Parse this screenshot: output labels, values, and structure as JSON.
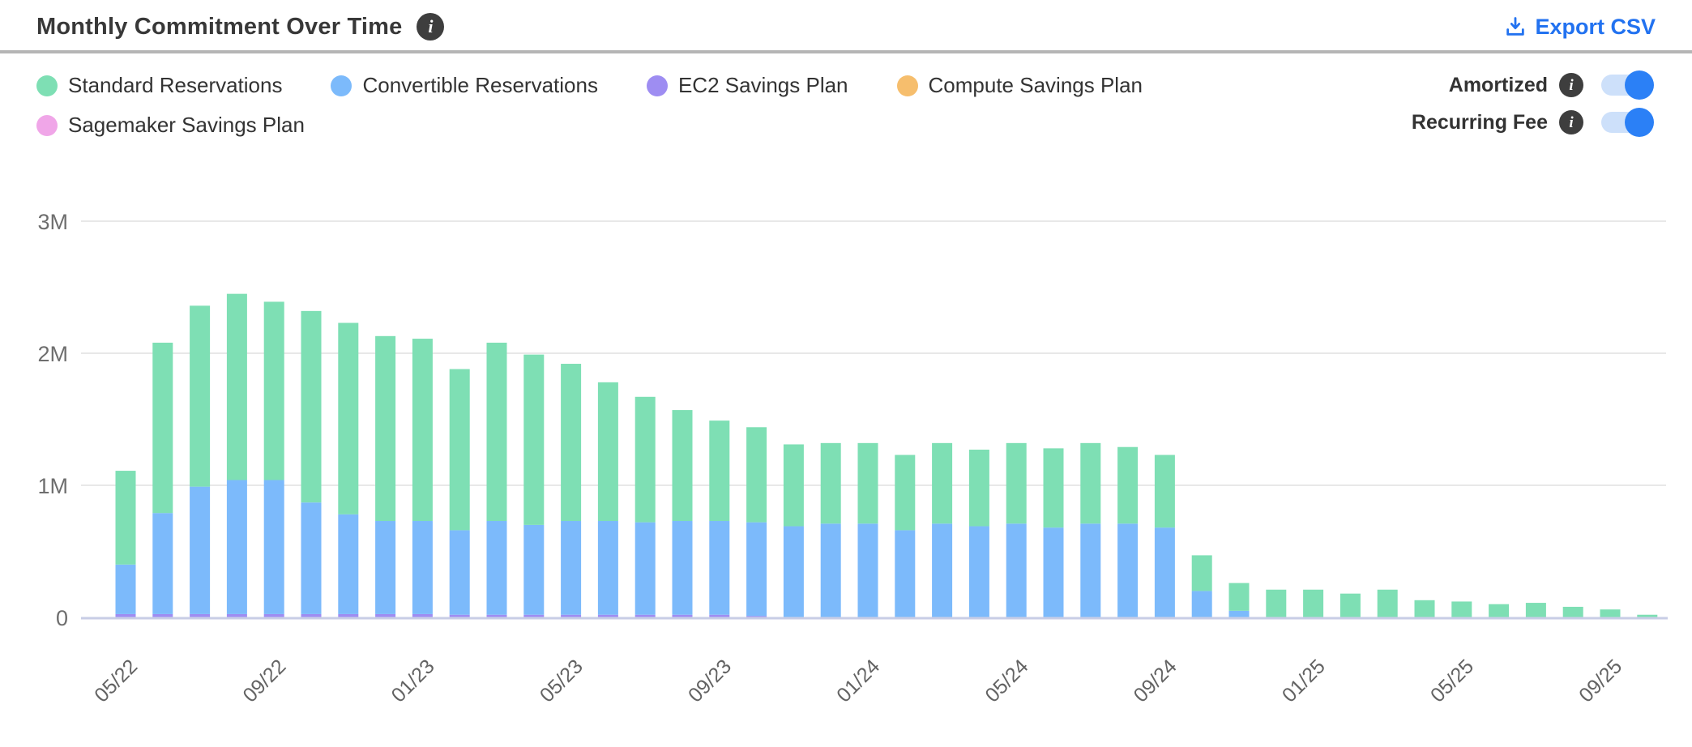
{
  "header": {
    "title": "Monthly Commitment Over Time",
    "title_info_icon": "info-icon",
    "export_label": "Export CSV",
    "export_color": "#2272f0"
  },
  "toggles": [
    {
      "label": "Amortized",
      "state": "on"
    },
    {
      "label": "Recurring Fee",
      "state": "on"
    }
  ],
  "colors": {
    "standard": "#7edfb4",
    "convertible": "#7cbafb",
    "ec2_sp": "#9e8df2",
    "compute_sp": "#f6be6d",
    "sagemaker_sp": "#f0a6e8",
    "toggle_on": "#2b80f6",
    "toggle_track": "#cde0fa",
    "gridline": "#e8e8e8",
    "baseline": "#c8cde6",
    "axis_text": "#6e6e6e"
  },
  "chart_data": {
    "type": "bar",
    "stacked": true,
    "title": "Monthly Commitment Over Time",
    "ylabel": "",
    "xlabel": "",
    "y_ticks": [
      "0",
      "1M",
      "2M",
      "3M"
    ],
    "ylim_millions": [
      0,
      3
    ],
    "grid": "horizontal",
    "legend_position": "top-left",
    "x_tick_every": 4,
    "values_unit": "millions",
    "x": [
      "05/22",
      "06/22",
      "07/22",
      "08/22",
      "09/22",
      "10/22",
      "11/22",
      "12/22",
      "01/23",
      "02/23",
      "03/23",
      "04/23",
      "05/23",
      "06/23",
      "07/23",
      "08/23",
      "09/23",
      "10/23",
      "11/23",
      "12/23",
      "01/24",
      "02/24",
      "03/24",
      "04/24",
      "05/24",
      "06/24",
      "07/24",
      "08/24",
      "09/24",
      "10/24",
      "11/24",
      "12/24",
      "01/25",
      "02/25",
      "03/25",
      "04/25",
      "05/25",
      "06/25",
      "07/25",
      "08/25",
      "09/25",
      "10/25"
    ],
    "series": [
      {
        "name": "Standard Reservations",
        "color": "#7edfb4",
        "values": [
          0.71,
          1.29,
          1.37,
          1.41,
          1.35,
          1.45,
          1.45,
          1.4,
          1.38,
          1.22,
          1.35,
          1.29,
          1.19,
          1.05,
          0.95,
          0.84,
          0.76,
          0.72,
          0.62,
          0.61,
          0.61,
          0.57,
          0.61,
          0.58,
          0.61,
          0.6,
          0.61,
          0.58,
          0.55,
          0.27,
          0.21,
          0.21,
          0.21,
          0.18,
          0.21,
          0.13,
          0.12,
          0.1,
          0.11,
          0.08,
          0.06,
          0.02
        ]
      },
      {
        "name": "Convertible Reservations",
        "color": "#7cbafb",
        "values": [
          0.375,
          0.765,
          0.965,
          1.015,
          1.015,
          0.845,
          0.755,
          0.705,
          0.705,
          0.64,
          0.71,
          0.68,
          0.71,
          0.71,
          0.7,
          0.71,
          0.71,
          0.71,
          0.69,
          0.71,
          0.71,
          0.66,
          0.71,
          0.69,
          0.71,
          0.68,
          0.71,
          0.71,
          0.68,
          0.2,
          0.05,
          0,
          0,
          0,
          0,
          0,
          0,
          0,
          0,
          0,
          0,
          0
        ]
      },
      {
        "name": "EC2 Savings Plan",
        "color": "#9e8df2",
        "values": [
          0.025,
          0.025,
          0.025,
          0.025,
          0.025,
          0.025,
          0.025,
          0.025,
          0.025,
          0.02,
          0.02,
          0.02,
          0.02,
          0.02,
          0.02,
          0.02,
          0.02,
          0.01,
          0,
          0,
          0,
          0,
          0,
          0,
          0,
          0,
          0,
          0,
          0,
          0,
          0,
          0,
          0,
          0,
          0,
          0,
          0,
          0,
          0,
          0,
          0,
          0
        ]
      },
      {
        "name": "Compute Savings Plan",
        "color": "#f6be6d",
        "values": [
          0,
          0,
          0,
          0,
          0,
          0,
          0,
          0,
          0,
          0,
          0,
          0,
          0,
          0,
          0,
          0,
          0,
          0,
          0,
          0,
          0,
          0,
          0,
          0,
          0,
          0,
          0,
          0,
          0,
          0,
          0,
          0,
          0,
          0,
          0,
          0,
          0,
          0,
          0,
          0,
          0,
          0
        ]
      },
      {
        "name": "Sagemaker Savings Plan",
        "color": "#f0a6e8",
        "values": [
          0,
          0,
          0,
          0,
          0,
          0,
          0,
          0,
          0,
          0,
          0,
          0,
          0,
          0,
          0,
          0,
          0,
          0,
          0,
          0,
          0,
          0,
          0,
          0,
          0,
          0,
          0,
          0,
          0,
          0,
          0,
          0,
          0,
          0,
          0,
          0,
          0,
          0,
          0,
          0,
          0,
          0
        ]
      }
    ]
  }
}
